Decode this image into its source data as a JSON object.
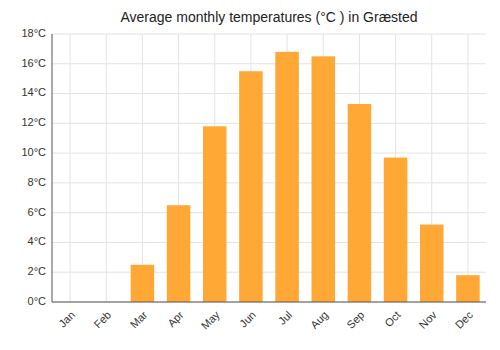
{
  "chart_data": {
    "type": "bar",
    "title": "Average monthly temperatures (°C ) in Græsted",
    "categories": [
      "Jan",
      "Feb",
      "Mar",
      "Apr",
      "May",
      "Jun",
      "Jul",
      "Aug",
      "Sep",
      "Oct",
      "Nov",
      "Dec"
    ],
    "values": [
      0.0,
      0.0,
      2.5,
      6.5,
      11.8,
      15.5,
      16.8,
      16.5,
      13.3,
      9.7,
      5.2,
      1.8
    ],
    "color": "#FFA836",
    "ylim": [
      0,
      18
    ],
    "yticks": [
      {
        "value": 0,
        "label": "0°C"
      },
      {
        "value": 2,
        "label": "2°C"
      },
      {
        "value": 4,
        "label": "4°C"
      },
      {
        "value": 6,
        "label": "6°C"
      },
      {
        "value": 8,
        "label": "8°C"
      },
      {
        "value": 10,
        "label": "10°C"
      },
      {
        "value": 12,
        "label": "12°C"
      },
      {
        "value": 14,
        "label": "14°C"
      },
      {
        "value": 16,
        "label": "16°C"
      },
      {
        "value": 18,
        "label": "18°C"
      }
    ],
    "grid": true
  }
}
